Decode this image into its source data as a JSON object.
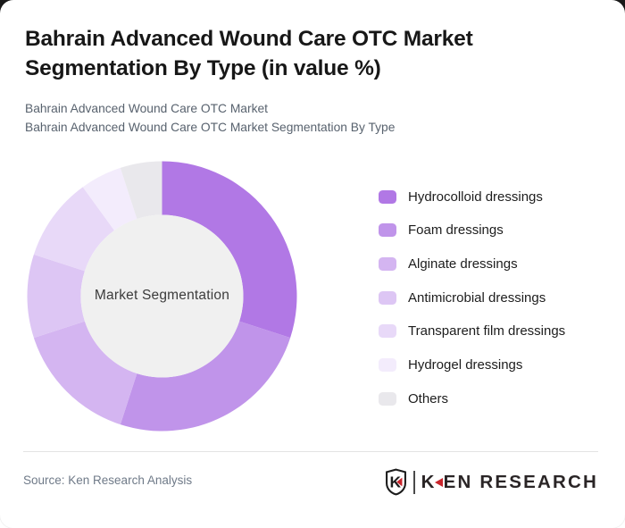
{
  "header": {
    "title": "Bahrain Advanced Wound Care OTC Market Segmentation By Type (in value %)",
    "subtitle_line1": "Bahrain Advanced Wound Care OTC Market",
    "subtitle_line2": "Bahrain Advanced Wound Care OTC Market Segmentation By Type"
  },
  "chart_data": {
    "type": "pie",
    "donut": true,
    "center_label": "Market Segmentation",
    "start_angle_deg": 0,
    "direction": "clockwise",
    "values_unit": "percent of market value",
    "legend_position": "right",
    "series": [
      {
        "label": "Hydrocolloid dressings",
        "value": 30,
        "color": "#b178e5"
      },
      {
        "label": "Foam dressings",
        "value": 25,
        "color": "#c094ea"
      },
      {
        "label": "Alginate dressings",
        "value": 15,
        "color": "#d4b5f1"
      },
      {
        "label": "Antimicrobial dressings",
        "value": 10,
        "color": "#ddc6f4"
      },
      {
        "label": "Transparent film dressings",
        "value": 10,
        "color": "#e8d9f8"
      },
      {
        "label": "Hydrogel dressings",
        "value": 5,
        "color": "#f3ecfc"
      },
      {
        "label": "Others",
        "value": 5,
        "color": "#e9e8ec"
      }
    ],
    "hole_color": "#f0f0f0"
  },
  "footer": {
    "source": "Source: Ken Research Analysis",
    "logo_k": "K",
    "logo_rest": "EN RESEARCH",
    "logo_dark_color": "#2a2526",
    "logo_red_color": "#c9252c"
  }
}
